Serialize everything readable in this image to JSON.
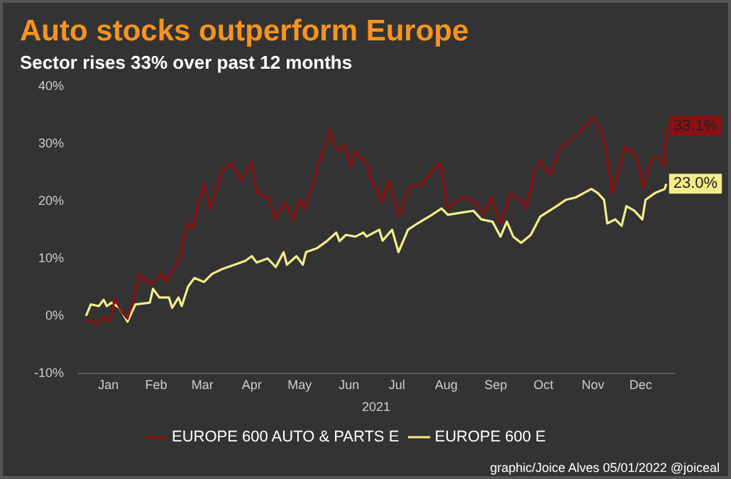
{
  "chart_data": {
    "type": "line",
    "title": "Auto stocks outperform Europe",
    "subtitle": "Sector rises 33% over past 12 months",
    "xlabel": "2021",
    "xlim": [
      "2020-12-27",
      "2022-01-05"
    ],
    "xticks": [
      {
        "value": "2021-01-15",
        "label": "Jan"
      },
      {
        "value": "2021-02-14",
        "label": "Feb"
      },
      {
        "value": "2021-03-15",
        "label": "Mar"
      },
      {
        "value": "2021-04-15",
        "label": "Apr"
      },
      {
        "value": "2021-05-15",
        "label": "May"
      },
      {
        "value": "2021-06-15",
        "label": "Jun"
      },
      {
        "value": "2021-07-15",
        "label": "Jul"
      },
      {
        "value": "2021-08-15",
        "label": "Aug"
      },
      {
        "value": "2021-09-15",
        "label": "Sep"
      },
      {
        "value": "2021-10-15",
        "label": "Oct"
      },
      {
        "value": "2021-11-15",
        "label": "Nov"
      },
      {
        "value": "2021-12-15",
        "label": "Dec"
      }
    ],
    "ylim": [
      -10,
      40
    ],
    "yticks": [
      {
        "value": -10,
        "label": "-10%"
      },
      {
        "value": 0,
        "label": "0%"
      },
      {
        "value": 10,
        "label": "10%"
      },
      {
        "value": 20,
        "label": "20%"
      },
      {
        "value": 30,
        "label": "30%"
      },
      {
        "value": 40,
        "label": "40%"
      }
    ],
    "grid": false,
    "legend": "bottom",
    "marker": "none",
    "series": [
      {
        "name": "EUROPE 600 AUTO & PARTS E",
        "color": "#8b1010",
        "x": [
          "2021-01-01",
          "2021-01-08",
          "2021-01-12",
          "2021-01-16",
          "2021-01-19",
          "2021-01-24",
          "2021-01-27",
          "2021-02-04",
          "2021-02-10",
          "2021-02-18",
          "2021-02-20",
          "2021-02-28",
          "2021-03-04",
          "2021-03-06",
          "2021-03-09",
          "2021-03-13",
          "2021-03-16",
          "2021-03-20",
          "2021-03-27",
          "2021-04-02",
          "2021-04-08",
          "2021-04-15",
          "2021-04-18",
          "2021-04-25",
          "2021-04-30",
          "2021-05-06",
          "2021-05-11",
          "2021-05-15",
          "2021-05-18",
          "2021-05-25",
          "2021-06-03",
          "2021-06-07",
          "2021-06-12",
          "2021-06-16",
          "2021-06-19",
          "2021-06-26",
          "2021-06-28",
          "2021-07-04",
          "2021-07-06",
          "2021-07-10",
          "2021-07-16",
          "2021-07-23",
          "2021-07-30",
          "2021-08-04",
          "2021-08-11",
          "2021-08-16",
          "2021-08-24",
          "2021-09-01",
          "2021-09-08",
          "2021-09-12",
          "2021-09-18",
          "2021-09-24",
          "2021-10-01",
          "2021-10-04",
          "2021-10-09",
          "2021-10-13",
          "2021-10-19",
          "2021-10-25",
          "2021-11-02",
          "2021-11-07",
          "2021-11-15",
          "2021-11-18",
          "2021-11-23",
          "2021-11-27",
          "2021-12-01",
          "2021-12-05",
          "2021-12-09",
          "2021-12-13",
          "2021-12-17",
          "2021-12-21",
          "2021-12-25",
          "2021-12-30",
          "2021-12-31"
        ],
        "values": [
          -0.6,
          -1.4,
          -0.2,
          -1,
          3,
          0.5,
          -0.5,
          7.3,
          5.5,
          7.3,
          5.8,
          9.6,
          13.8,
          16.1,
          15.4,
          20.2,
          23,
          18.6,
          25.2,
          26.7,
          23.6,
          26.7,
          21.4,
          20.6,
          16.8,
          19.8,
          16.8,
          20.2,
          18.6,
          24.8,
          32.3,
          28.9,
          29.7,
          25.9,
          28.5,
          26.7,
          24.1,
          21,
          19.8,
          23.6,
          17.3,
          22.5,
          22.7,
          24.4,
          26.7,
          18.7,
          20.7,
          20,
          17.6,
          20.7,
          16.1,
          21.4,
          20.2,
          18.6,
          24.8,
          27,
          24.4,
          28.9,
          30.9,
          32,
          34.6,
          33.5,
          29.3,
          21.4,
          25.2,
          29.3,
          29,
          27,
          22.1,
          27,
          27.7,
          26.2,
          33.1
        ]
      },
      {
        "name": "EUROPE 600 E",
        "color": "#f3ee8a",
        "x": [
          "2021-01-01",
          "2021-01-04",
          "2021-01-09",
          "2021-01-12",
          "2021-01-14",
          "2021-01-17",
          "2021-01-22",
          "2021-01-27",
          "2021-02-01",
          "2021-02-10",
          "2021-02-12",
          "2021-02-16",
          "2021-02-22",
          "2021-02-24",
          "2021-02-28",
          "2021-03-02",
          "2021-03-06",
          "2021-03-10",
          "2021-03-16",
          "2021-03-21",
          "2021-03-27",
          "2021-04-04",
          "2021-04-11",
          "2021-04-15",
          "2021-04-18",
          "2021-04-25",
          "2021-04-30",
          "2021-05-05",
          "2021-05-07",
          "2021-05-13",
          "2021-05-17",
          "2021-05-19",
          "2021-05-26",
          "2021-06-01",
          "2021-06-07",
          "2021-06-09",
          "2021-06-13",
          "2021-06-19",
          "2021-06-24",
          "2021-06-26",
          "2021-07-04",
          "2021-07-06",
          "2021-07-12",
          "2021-07-16",
          "2021-07-22",
          "2021-07-28",
          "2021-08-06",
          "2021-08-12",
          "2021-08-16",
          "2021-08-25",
          "2021-09-01",
          "2021-09-06",
          "2021-09-13",
          "2021-09-18",
          "2021-09-22",
          "2021-09-26",
          "2021-10-01",
          "2021-10-07",
          "2021-10-13",
          "2021-10-21",
          "2021-10-29",
          "2021-11-04",
          "2021-11-14",
          "2021-11-18",
          "2021-11-22",
          "2021-11-24",
          "2021-11-29",
          "2021-12-03",
          "2021-12-06",
          "2021-12-11",
          "2021-12-16",
          "2021-12-18",
          "2021-12-24",
          "2021-12-30",
          "2021-12-31"
        ],
        "values": [
          0,
          2,
          1.7,
          2.8,
          1.7,
          2.3,
          1.4,
          -1,
          2,
          2.3,
          4.7,
          3.2,
          3.2,
          1.4,
          3.2,
          1.7,
          5.1,
          6.6,
          5.9,
          7.3,
          8.1,
          8.9,
          9.6,
          10.4,
          9.3,
          10,
          8.5,
          11.1,
          8.9,
          10.4,
          8.9,
          11.1,
          11.8,
          13,
          14.5,
          13,
          14.1,
          13.8,
          14.5,
          13.8,
          15,
          13.1,
          15,
          11.1,
          15,
          16.1,
          17.6,
          18.7,
          17.6,
          18,
          18.3,
          16.8,
          16.4,
          13.8,
          16.4,
          13.8,
          12.7,
          14.1,
          17.3,
          18.7,
          20.2,
          20.6,
          22.1,
          21.4,
          20.2,
          16.1,
          16.8,
          15.7,
          19.1,
          18.3,
          16.8,
          20.2,
          21.4,
          22.1,
          23
        ]
      }
    ],
    "annotations": [
      {
        "text": "33.1%",
        "x": "2021-12-31",
        "y": 33.1
      },
      {
        "text": "23.0%",
        "x": "2021-12-31",
        "y": 23
      },
      "graphic/Joice Alves 05/01/2022 @joiceal"
    ]
  }
}
